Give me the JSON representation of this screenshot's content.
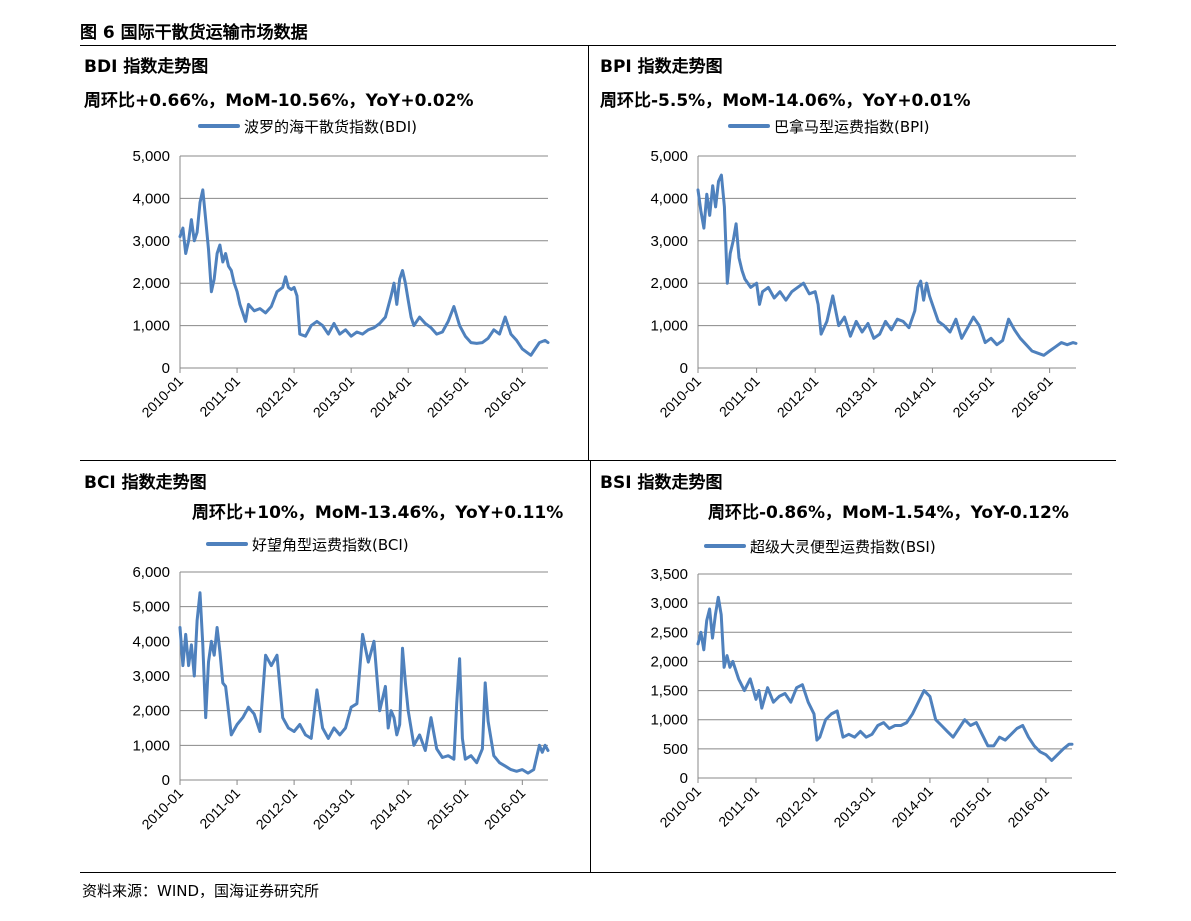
{
  "figure": {
    "title": "图 6 国际干散货运输市场数据",
    "source": "资料来源：WIND，国海证券研究所"
  },
  "colors": {
    "series": "#4f81bd",
    "grid": "#888888",
    "axis": "#888888",
    "text": "#000000"
  },
  "chart_data": [
    {
      "type": "line",
      "panel_title": "BDI 指数走势图",
      "subtitle": "周环比+0.66%，MoM-10.56%，YoY+0.02%",
      "legend_position": "top",
      "grid": true,
      "ylim": [
        0,
        5000
      ],
      "ticks": [
        "0",
        "1,000",
        "2,000",
        "3,000",
        "4,000",
        "5,000"
      ],
      "tick_values": [
        0,
        1000,
        2000,
        3000,
        4000,
        5000
      ],
      "x_ticks": [
        "2010-01",
        "2011-01",
        "2012-01",
        "2013-01",
        "2014-01",
        "2015-01",
        "2016-01"
      ],
      "xlim": [
        2010.0,
        2016.45
      ],
      "series": [
        {
          "name": "波罗的海干散货指数(BDI)",
          "x": [
            2010.0,
            2010.05,
            2010.1,
            2010.15,
            2010.2,
            2010.25,
            2010.3,
            2010.35,
            2010.4,
            2010.45,
            2010.5,
            2010.55,
            2010.6,
            2010.65,
            2010.7,
            2010.75,
            2010.8,
            2010.85,
            2010.9,
            2010.95,
            2011.0,
            2011.05,
            2011.1,
            2011.15,
            2011.2,
            2011.3,
            2011.4,
            2011.5,
            2011.6,
            2011.7,
            2011.8,
            2011.85,
            2011.9,
            2011.95,
            2012.0,
            2012.05,
            2012.1,
            2012.2,
            2012.3,
            2012.4,
            2012.5,
            2012.6,
            2012.7,
            2012.8,
            2012.9,
            2013.0,
            2013.1,
            2013.2,
            2013.3,
            2013.4,
            2013.5,
            2013.6,
            2013.7,
            2013.75,
            2013.8,
            2013.85,
            2013.9,
            2013.95,
            2014.0,
            2014.05,
            2014.1,
            2014.2,
            2014.3,
            2014.4,
            2014.5,
            2014.6,
            2014.7,
            2014.8,
            2014.9,
            2015.0,
            2015.1,
            2015.2,
            2015.3,
            2015.4,
            2015.5,
            2015.6,
            2015.7,
            2015.8,
            2015.9,
            2016.0,
            2016.1,
            2016.15,
            2016.2,
            2016.3,
            2016.4,
            2016.45
          ],
          "y": [
            3100,
            3300,
            2700,
            3000,
            3500,
            3000,
            3200,
            3900,
            4200,
            3500,
            2800,
            1800,
            2100,
            2700,
            2900,
            2500,
            2700,
            2400,
            2300,
            2000,
            1800,
            1500,
            1300,
            1100,
            1500,
            1350,
            1400,
            1300,
            1450,
            1800,
            1900,
            2150,
            1900,
            1850,
            1900,
            1700,
            800,
            750,
            1000,
            1100,
            1000,
            800,
            1050,
            800,
            900,
            750,
            850,
            800,
            900,
            950,
            1050,
            1200,
            1700,
            2000,
            1500,
            2100,
            2300,
            2000,
            1600,
            1200,
            1000,
            1200,
            1050,
            950,
            800,
            850,
            1100,
            1450,
            1000,
            750,
            600,
            580,
            600,
            700,
            900,
            800,
            1200,
            800,
            650,
            450,
            350,
            300,
            400,
            600,
            650,
            600
          ]
        }
      ]
    },
    {
      "type": "line",
      "panel_title": "BPI 指数走势图",
      "subtitle": "周环比-5.5%，MoM-14.06%，YoY+0.01%",
      "legend_position": "top",
      "grid": true,
      "ylim": [
        0,
        5000
      ],
      "ticks": [
        "0",
        "1,000",
        "2,000",
        "3,000",
        "4,000",
        "5,000"
      ],
      "tick_values": [
        0,
        1000,
        2000,
        3000,
        4000,
        5000
      ],
      "x_ticks": [
        "2010-01",
        "2011-01",
        "2012-01",
        "2013-01",
        "2014-01",
        "2015-01",
        "2016-01"
      ],
      "xlim": [
        2010.0,
        2016.45
      ],
      "series": [
        {
          "name": "巴拿马型运费指数(BPI)",
          "x": [
            2010.0,
            2010.05,
            2010.1,
            2010.15,
            2010.2,
            2010.25,
            2010.3,
            2010.35,
            2010.4,
            2010.45,
            2010.5,
            2010.55,
            2010.6,
            2010.65,
            2010.7,
            2010.75,
            2010.8,
            2010.9,
            2011.0,
            2011.05,
            2011.1,
            2011.2,
            2011.3,
            2011.4,
            2011.5,
            2011.6,
            2011.7,
            2011.8,
            2011.9,
            2012.0,
            2012.05,
            2012.1,
            2012.2,
            2012.3,
            2012.4,
            2012.5,
            2012.6,
            2012.7,
            2012.8,
            2012.9,
            2013.0,
            2013.1,
            2013.2,
            2013.3,
            2013.4,
            2013.5,
            2013.6,
            2013.7,
            2013.75,
            2013.8,
            2013.85,
            2013.9,
            2013.95,
            2014.0,
            2014.1,
            2014.2,
            2014.3,
            2014.4,
            2014.5,
            2014.6,
            2014.7,
            2014.8,
            2014.9,
            2015.0,
            2015.1,
            2015.2,
            2015.3,
            2015.4,
            2015.5,
            2015.6,
            2015.7,
            2015.8,
            2015.9,
            2016.0,
            2016.1,
            2016.2,
            2016.3,
            2016.4,
            2016.45
          ],
          "y": [
            4200,
            3700,
            3300,
            4100,
            3600,
            4300,
            3800,
            4400,
            4550,
            3800,
            2000,
            2700,
            3000,
            3400,
            2600,
            2300,
            2100,
            1900,
            2000,
            1500,
            1800,
            1900,
            1650,
            1800,
            1600,
            1800,
            1900,
            2000,
            1750,
            1800,
            1500,
            800,
            1100,
            1700,
            1000,
            1200,
            750,
            1100,
            850,
            1050,
            700,
            800,
            1100,
            900,
            1150,
            1100,
            950,
            1350,
            1900,
            2050,
            1600,
            2000,
            1700,
            1500,
            1100,
            1000,
            850,
            1150,
            700,
            950,
            1200,
            1000,
            600,
            700,
            550,
            650,
            1150,
            900,
            700,
            550,
            400,
            350,
            300,
            400,
            500,
            600,
            550,
            600,
            580
          ]
        }
      ]
    },
    {
      "type": "line",
      "panel_title": "BCI 指数走势图",
      "subtitle": "周环比+10%，MoM-13.46%，YoY+0.11%",
      "legend_position": "top",
      "grid": true,
      "ylim": [
        0,
        6000
      ],
      "ticks": [
        "0",
        "1,000",
        "2,000",
        "3,000",
        "4,000",
        "5,000",
        "6,000"
      ],
      "tick_values": [
        0,
        1000,
        2000,
        3000,
        4000,
        5000,
        6000
      ],
      "x_ticks": [
        "2010-01",
        "2011-01",
        "2012-01",
        "2013-01",
        "2014-01",
        "2015-01",
        "2016-01"
      ],
      "xlim": [
        2010.0,
        2016.45
      ],
      "series": [
        {
          "name": "好望角型运费指数(BCI)",
          "x": [
            2010.0,
            2010.05,
            2010.1,
            2010.15,
            2010.2,
            2010.25,
            2010.3,
            2010.35,
            2010.4,
            2010.45,
            2010.5,
            2010.55,
            2010.6,
            2010.65,
            2010.7,
            2010.75,
            2010.8,
            2010.9,
            2011.0,
            2011.1,
            2011.2,
            2011.3,
            2011.4,
            2011.5,
            2011.6,
            2011.7,
            2011.8,
            2011.9,
            2012.0,
            2012.1,
            2012.2,
            2012.3,
            2012.4,
            2012.5,
            2012.6,
            2012.7,
            2012.8,
            2012.9,
            2013.0,
            2013.1,
            2013.2,
            2013.3,
            2013.4,
            2013.5,
            2013.6,
            2013.65,
            2013.7,
            2013.75,
            2013.8,
            2013.85,
            2013.9,
            2013.95,
            2014.0,
            2014.1,
            2014.2,
            2014.3,
            2014.4,
            2014.5,
            2014.6,
            2014.7,
            2014.8,
            2014.85,
            2014.9,
            2014.95,
            2015.0,
            2015.1,
            2015.2,
            2015.3,
            2015.35,
            2015.4,
            2015.5,
            2015.6,
            2015.7,
            2015.8,
            2015.9,
            2016.0,
            2016.1,
            2016.2,
            2016.3,
            2016.35,
            2016.4,
            2016.45
          ],
          "y": [
            4400,
            3300,
            4200,
            3300,
            3900,
            3000,
            4600,
            5400,
            3900,
            1800,
            3400,
            4000,
            3600,
            4400,
            3700,
            2800,
            2700,
            1300,
            1600,
            1800,
            2100,
            1900,
            1400,
            3600,
            3300,
            3600,
            1800,
            1500,
            1400,
            1600,
            1300,
            1200,
            2600,
            1500,
            1200,
            1500,
            1300,
            1500,
            2100,
            2200,
            4200,
            3400,
            4000,
            2000,
            2700,
            1500,
            2000,
            1800,
            1300,
            1600,
            3800,
            2800,
            2000,
            1000,
            1300,
            850,
            1800,
            900,
            650,
            700,
            600,
            2200,
            3500,
            1200,
            600,
            700,
            500,
            900,
            2800,
            1700,
            700,
            500,
            400,
            300,
            250,
            300,
            200,
            300,
            1000,
            800,
            1000,
            850
          ]
        }
      ]
    },
    {
      "type": "line",
      "panel_title": "BSI 指数走势图",
      "subtitle": "周环比-0.86%，MoM-1.54%，YoY-0.12%",
      "legend_position": "top",
      "grid": true,
      "ylim": [
        0,
        3500
      ],
      "ticks": [
        "0",
        "500",
        "1,000",
        "1,500",
        "2,000",
        "2,500",
        "3,000",
        "3,500"
      ],
      "tick_values": [
        0,
        500,
        1000,
        1500,
        2000,
        2500,
        3000,
        3500
      ],
      "x_ticks": [
        "2010-01",
        "2011-01",
        "2012-01",
        "2013-01",
        "2014-01",
        "2015-01",
        "2016-01"
      ],
      "xlim": [
        2010.0,
        2016.45
      ],
      "series": [
        {
          "name": "超级大灵便型运费指数(BSI)",
          "x": [
            2010.0,
            2010.05,
            2010.1,
            2010.15,
            2010.2,
            2010.25,
            2010.3,
            2010.35,
            2010.4,
            2010.45,
            2010.5,
            2010.55,
            2010.6,
            2010.7,
            2010.8,
            2010.9,
            2011.0,
            2011.05,
            2011.1,
            2011.2,
            2011.3,
            2011.4,
            2011.5,
            2011.6,
            2011.7,
            2011.8,
            2011.9,
            2012.0,
            2012.05,
            2012.1,
            2012.2,
            2012.3,
            2012.4,
            2012.5,
            2012.6,
            2012.7,
            2012.8,
            2012.9,
            2013.0,
            2013.1,
            2013.2,
            2013.3,
            2013.4,
            2013.5,
            2013.6,
            2013.7,
            2013.8,
            2013.9,
            2014.0,
            2014.1,
            2014.2,
            2014.3,
            2014.4,
            2014.5,
            2014.6,
            2014.7,
            2014.8,
            2014.9,
            2015.0,
            2015.1,
            2015.2,
            2015.3,
            2015.4,
            2015.5,
            2015.6,
            2015.7,
            2015.8,
            2015.9,
            2016.0,
            2016.1,
            2016.2,
            2016.3,
            2016.4,
            2016.45
          ],
          "y": [
            2300,
            2500,
            2200,
            2700,
            2900,
            2400,
            2800,
            3100,
            2800,
            1900,
            2100,
            1900,
            2000,
            1700,
            1500,
            1700,
            1350,
            1500,
            1200,
            1550,
            1300,
            1400,
            1450,
            1300,
            1550,
            1600,
            1300,
            1100,
            650,
            700,
            1000,
            1100,
            1150,
            700,
            750,
            700,
            800,
            700,
            750,
            900,
            950,
            850,
            900,
            900,
            950,
            1100,
            1300,
            1500,
            1400,
            1000,
            900,
            800,
            700,
            850,
            1000,
            900,
            950,
            750,
            550,
            550,
            700,
            650,
            750,
            850,
            900,
            700,
            550,
            450,
            400,
            300,
            400,
            500,
            580,
            580
          ]
        }
      ]
    }
  ]
}
